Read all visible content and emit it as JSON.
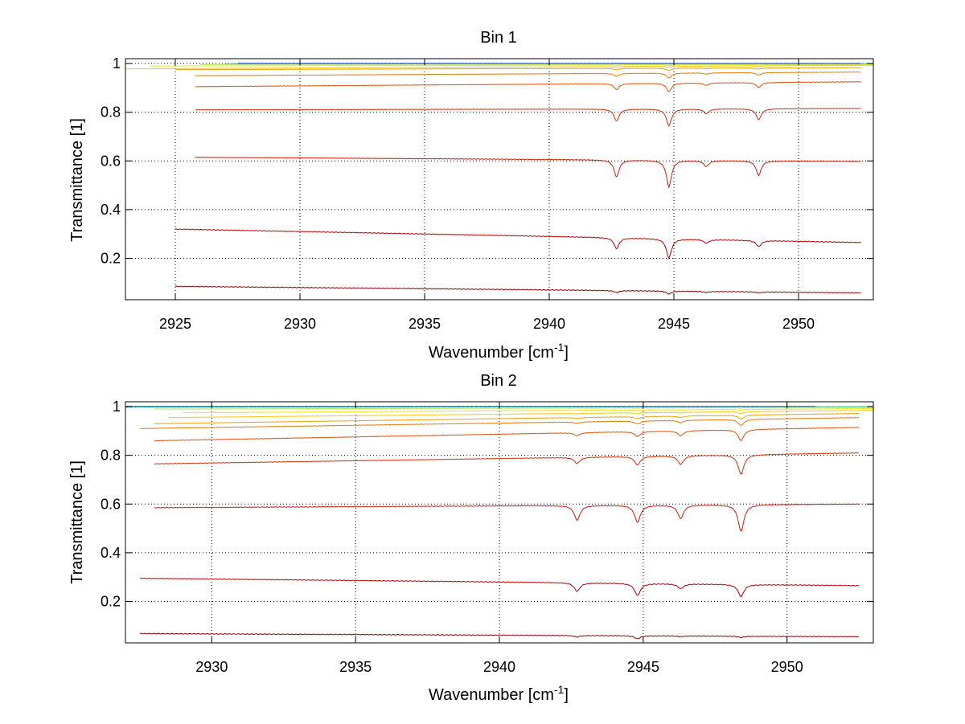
{
  "chart_data": [
    {
      "type": "line",
      "title": "Bin 1",
      "xlabel": "Wavenumber [cm",
      "xlabel_sup": "-1",
      "xlabel_end": "]",
      "ylabel": "Transmittance [1]",
      "xlim": [
        2923,
        2953
      ],
      "ylim": [
        0.03,
        1.02
      ],
      "grid": true,
      "xticks": [
        2925,
        2930,
        2935,
        2940,
        2945,
        2950
      ],
      "yticks": [
        0.2,
        0.4,
        0.6,
        0.8,
        1
      ],
      "dip_centers": [
        2942.7,
        2944.8,
        2946.3,
        2948.4
      ],
      "series": [
        {
          "color": "#8b0000",
          "x": [
            2925.0,
            2952.5
          ],
          "y": [
            0.085,
            0.058
          ],
          "dips": [
            0.008,
            0.012,
            0.004,
            0.004
          ]
        },
        {
          "color": "#b40000",
          "x": [
            2925.0,
            2952.5
          ],
          "y": [
            0.32,
            0.265
          ],
          "dips": [
            0.045,
            0.08,
            0.015,
            0.025
          ]
        },
        {
          "color": "#c81e0a",
          "x": [
            2925.8,
            2952.5
          ],
          "y": [
            0.615,
            0.598
          ],
          "dips": [
            0.07,
            0.11,
            0.025,
            0.06
          ]
        },
        {
          "color": "#d22d0a",
          "x": [
            2925.8,
            2952.5
          ],
          "y": [
            0.81,
            0.815
          ],
          "dips": [
            0.05,
            0.07,
            0.02,
            0.045
          ]
        },
        {
          "color": "#dc500a",
          "x": [
            2925.8,
            2952.5
          ],
          "y": [
            0.905,
            0.925
          ],
          "dips": [
            0.025,
            0.035,
            0.01,
            0.02
          ]
        },
        {
          "color": "#e6780a",
          "x": [
            2925.8,
            2952.5
          ],
          "y": [
            0.95,
            0.965
          ],
          "dips": [
            0.012,
            0.02,
            0.005,
            0.01
          ]
        },
        {
          "color": "#f0a00a",
          "x": [
            2925.0,
            2952.5
          ],
          "y": [
            0.975,
            0.983
          ],
          "dips": [
            0.006,
            0.01,
            0.003,
            0.005
          ]
        },
        {
          "color": "#f5c814",
          "x": [
            2923.0,
            2953.0
          ],
          "y": [
            0.978,
            0.993
          ],
          "dips": [
            0.003,
            0.005,
            0.002,
            0.003
          ]
        },
        {
          "color": "#e6e628",
          "x": [
            2924.0,
            2953.0
          ],
          "y": [
            0.99,
            0.996
          ],
          "dips": [
            0.002,
            0.003,
            0.001,
            0.002
          ]
        },
        {
          "color": "#b4e650",
          "x": [
            2926.0,
            2953.0
          ],
          "y": [
            0.996,
            0.998
          ],
          "dips": [
            0,
            0.001,
            0,
            0
          ]
        },
        {
          "color": "#32c8b4",
          "x": [
            2927.0,
            2953.0
          ],
          "y": [
            0.999,
            1.0
          ],
          "dips": [
            0,
            0,
            0,
            0
          ]
        },
        {
          "color": "#1e50c8",
          "x": [
            2927.5,
            2952.5
          ],
          "y": [
            1.001,
            1.0
          ],
          "dips": [
            0,
            0,
            0,
            0
          ]
        }
      ]
    },
    {
      "type": "line",
      "title": "Bin 2",
      "xlabel": "Wavenumber [cm",
      "xlabel_sup": "-1",
      "xlabel_end": "]",
      "ylabel": "Transmittance [1]",
      "xlim": [
        2927,
        2953
      ],
      "ylim": [
        0.03,
        1.02
      ],
      "grid": true,
      "xticks": [
        2930,
        2935,
        2940,
        2945,
        2950
      ],
      "yticks": [
        0.2,
        0.4,
        0.6,
        0.8,
        1
      ],
      "dip_centers": [
        2942.7,
        2944.8,
        2946.3,
        2948.4
      ],
      "series": [
        {
          "color": "#8b0000",
          "x": [
            2927.5,
            2952.5
          ],
          "y": [
            0.068,
            0.055
          ],
          "dips": [
            0.006,
            0.012,
            0.003,
            0.005
          ]
        },
        {
          "color": "#b40000",
          "x": [
            2927.5,
            2952.5
          ],
          "y": [
            0.295,
            0.265
          ],
          "dips": [
            0.035,
            0.05,
            0.02,
            0.05
          ]
        },
        {
          "color": "#c81e0a",
          "x": [
            2928.0,
            2952.5
          ],
          "y": [
            0.585,
            0.6
          ],
          "dips": [
            0.06,
            0.07,
            0.055,
            0.11
          ]
        },
        {
          "color": "#d22d0a",
          "x": [
            2928.0,
            2952.5
          ],
          "y": [
            0.765,
            0.81
          ],
          "dips": [
            0.025,
            0.035,
            0.035,
            0.08
          ]
        },
        {
          "color": "#dc500a",
          "x": [
            2928.0,
            2952.5
          ],
          "y": [
            0.86,
            0.915
          ],
          "dips": [
            0.012,
            0.02,
            0.02,
            0.045
          ]
        },
        {
          "color": "#e6780a",
          "x": [
            2927.5,
            2952.5
          ],
          "y": [
            0.91,
            0.955
          ],
          "dips": [
            0.006,
            0.012,
            0.01,
            0.025
          ]
        },
        {
          "color": "#f0a00a",
          "x": [
            2928.0,
            2952.5
          ],
          "y": [
            0.93,
            0.972
          ],
          "dips": [
            0.004,
            0.008,
            0.006,
            0.015
          ]
        },
        {
          "color": "#f5c814",
          "x": [
            2928.5,
            2953.0
          ],
          "y": [
            0.955,
            0.985
          ],
          "dips": [
            0.002,
            0.004,
            0.003,
            0.008
          ]
        },
        {
          "color": "#e6e628",
          "x": [
            2929.0,
            2953.0
          ],
          "y": [
            0.975,
            0.992
          ],
          "dips": [
            0.001,
            0.002,
            0.002,
            0.004
          ]
        },
        {
          "color": "#b4e650",
          "x": [
            2928.0,
            2953.0
          ],
          "y": [
            0.99,
            0.997
          ],
          "dips": [
            0,
            0.001,
            0,
            0.002
          ]
        },
        {
          "color": "#32c8b4",
          "x": [
            2927.0,
            2953.0
          ],
          "y": [
            0.998,
            1.0
          ],
          "dips": [
            0,
            0,
            0,
            0
          ]
        },
        {
          "color": "#1e50c8",
          "x": [
            2927.0,
            2951.0
          ],
          "y": [
            1.001,
            1.001
          ],
          "dips": [
            0,
            0,
            0,
            0
          ]
        }
      ]
    }
  ]
}
